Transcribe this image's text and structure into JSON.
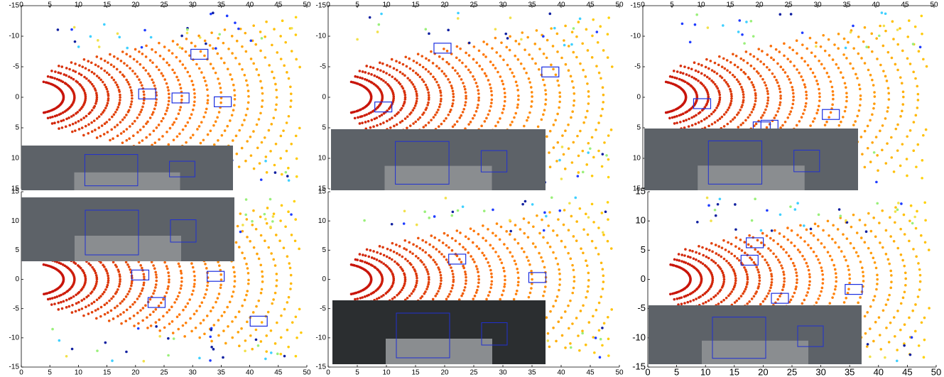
{
  "panels": [
    {
      "type": "scatter",
      "x_axis": "top",
      "xlim": [
        0,
        50
      ],
      "ylim": [
        -15,
        15
      ],
      "xticks": [
        0,
        5,
        10,
        15,
        20,
        25,
        30,
        35,
        40,
        45,
        50
      ],
      "yticks": [
        -15,
        -10,
        -5,
        0,
        5,
        10,
        15
      ]
    },
    {
      "type": "scatter",
      "x_axis": "top",
      "xlim": [
        0,
        50
      ],
      "ylim": [
        -15,
        15
      ],
      "xticks": [
        0,
        5,
        10,
        15,
        20,
        25,
        30,
        35,
        40,
        45,
        50
      ],
      "yticks": [
        -15,
        -10,
        -5,
        0,
        5,
        10,
        15
      ]
    },
    {
      "type": "scatter",
      "x_axis": "top",
      "xlim": [
        0,
        50
      ],
      "ylim": [
        -15,
        15
      ],
      "xticks": [
        0,
        5,
        10,
        15,
        20,
        25,
        30,
        35,
        40,
        45,
        50
      ],
      "yticks": [
        -15,
        -10,
        -5,
        0,
        5,
        10,
        15
      ]
    },
    {
      "type": "scatter",
      "x_axis": "bottom",
      "xlim": [
        0,
        50
      ],
      "ylim": [
        -15,
        15
      ],
      "xticks": [
        0,
        5,
        10,
        15,
        20,
        25,
        30,
        35,
        40,
        45,
        50
      ],
      "yticks": [
        -15,
        -10,
        -5,
        0,
        5,
        10,
        15
      ]
    },
    {
      "type": "scatter",
      "x_axis": "bottom",
      "xlim": [
        0,
        50
      ],
      "ylim": [
        -15,
        15
      ],
      "xticks": [
        0,
        5,
        10,
        15,
        20,
        25,
        30,
        35,
        40,
        45,
        50
      ],
      "yticks": [
        -15,
        -10,
        -5,
        0,
        5,
        10,
        15
      ]
    },
    {
      "type": "scatter",
      "x_axis": "bottom",
      "xlim": [
        0,
        50
      ],
      "ylim": [
        -15,
        15
      ],
      "xticks": [
        0,
        5,
        10,
        15,
        20,
        25,
        30,
        35,
        40,
        45,
        50
      ],
      "yticks": [
        -15,
        -10,
        -5,
        0,
        5,
        10,
        15
      ]
    }
  ]
}
